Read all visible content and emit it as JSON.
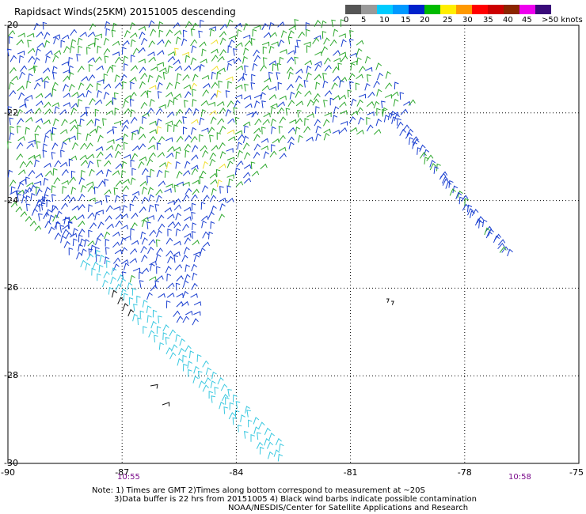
{
  "title": "Rapidsact Winds(25KM) 20151005 descending",
  "legend": {
    "ticks": [
      "0",
      "5",
      "10",
      "15",
      "20",
      "25",
      "30",
      "35",
      "40",
      "45",
      ">50 knots"
    ],
    "colors": [
      "#555555",
      "#9a9a9a",
      "#00ccff",
      "#0099ff",
      "#0022cc",
      "#00bb00",
      "#ffee00",
      "#ff9900",
      "#ff0000",
      "#cc0000",
      "#8b2500",
      "#ee00ee",
      "#3a0b7a"
    ]
  },
  "axes": {
    "lon_labels": [
      "-90",
      "-87",
      "-84",
      "-81",
      "-78",
      "-75"
    ],
    "lat_labels": [
      "-20",
      "-22",
      "-24",
      "-26",
      "-28",
      "-30"
    ],
    "lon_range": [
      -90,
      -75
    ],
    "lat_range": [
      -20,
      -30
    ],
    "grid": "dotted"
  },
  "times": {
    "left": "10:55",
    "right": "10:58"
  },
  "notes": [
    "Note: 1) Times are GMT 2)Times along bottom correspond to measurement at ~20S",
    "3)Data buffer is 22 hrs from 20151005 4) Black wind barbs indicate possible contamination",
    "NOAA/NESDIS/Center for Satellite Applications and Research"
  ],
  "wind_colors": {
    "blue": "#1a3fd0",
    "green": "#2ea82e",
    "yellow": "#f0e030",
    "cyan": "#39c8e0",
    "black": "#111111"
  }
}
